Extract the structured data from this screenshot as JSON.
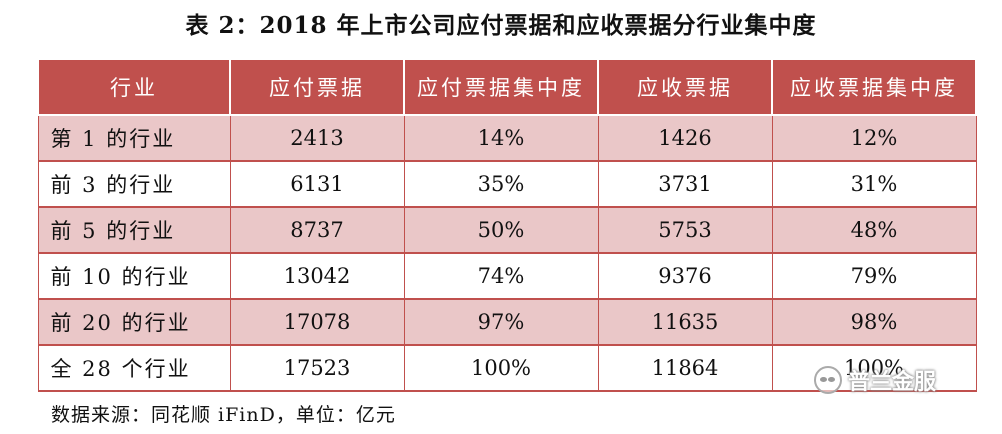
{
  "title": "表 2：2018 年上市公司应付票据和应收票据分行业集中度",
  "table": {
    "headers": [
      "行业",
      "应付票据",
      "应付票据集中度",
      "应收票据",
      "应收票据集中度"
    ],
    "rows": [
      [
        "第 1 的行业",
        "2413",
        "14%",
        "1426",
        "12%"
      ],
      [
        "前 3 的行业",
        "6131",
        "35%",
        "3731",
        "31%"
      ],
      [
        "前 5 的行业",
        "8737",
        "50%",
        "5753",
        "48%"
      ],
      [
        "前 10 的行业",
        "13042",
        "74%",
        "9376",
        "79%"
      ],
      [
        "前 20 的行业",
        "17078",
        "97%",
        "11635",
        "98%"
      ],
      [
        "全 28 个行业",
        "17523",
        "100%",
        "11864",
        "100%"
      ]
    ]
  },
  "source": "数据来源：同花顺 iFinD，单位：亿元",
  "watermark": "普兰金服",
  "colors": {
    "header_bg": "#c0504d",
    "odd_row_bg": "#eac7c8",
    "border": "#c0504d"
  }
}
